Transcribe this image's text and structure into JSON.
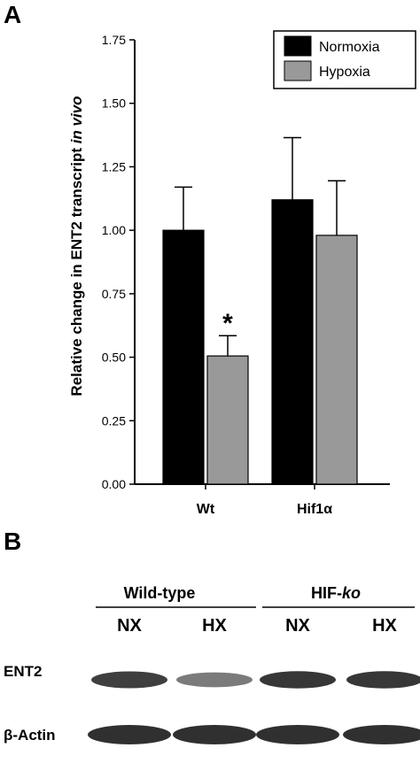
{
  "panel_a_label": "A",
  "panel_b_label": "B",
  "chart_data": {
    "type": "bar",
    "categories": [
      "Wt",
      "Hif1α"
    ],
    "series": [
      {
        "name": "Normoxia",
        "values": [
          1.0,
          1.12
        ],
        "errors": [
          0.17,
          0.245
        ],
        "color": "#000000"
      },
      {
        "name": "Hypoxia",
        "values": [
          0.505,
          0.98
        ],
        "errors": [
          0.08,
          0.215
        ],
        "color": "#999999"
      }
    ],
    "ylabel_main": "Relative change in ENT2 transcript ",
    "ylabel_italic": "in vivo",
    "ylim": [
      0,
      1.75
    ],
    "yticks": [
      "0.00",
      "0.25",
      "0.50",
      "0.75",
      "1.00",
      "1.25",
      "1.50",
      "1.75"
    ],
    "significance": [
      {
        "category": "Wt",
        "series": "Hypoxia",
        "label": "*"
      }
    ],
    "legend_placement": "top-right",
    "grid": false
  },
  "blot": {
    "groups": [
      {
        "label_plain": "Wild-type",
        "label_italic": ""
      },
      {
        "label_plain": "HIF-",
        "label_italic": "ko"
      }
    ],
    "lanes": [
      "NX",
      "HX",
      "NX",
      "HX"
    ],
    "rows": [
      {
        "label": "ENT2",
        "intensities": [
          0.85,
          0.45,
          0.9,
          0.9
        ]
      },
      {
        "label": "β-Actin",
        "intensities": [
          0.95,
          0.95,
          0.95,
          0.95
        ]
      }
    ]
  }
}
